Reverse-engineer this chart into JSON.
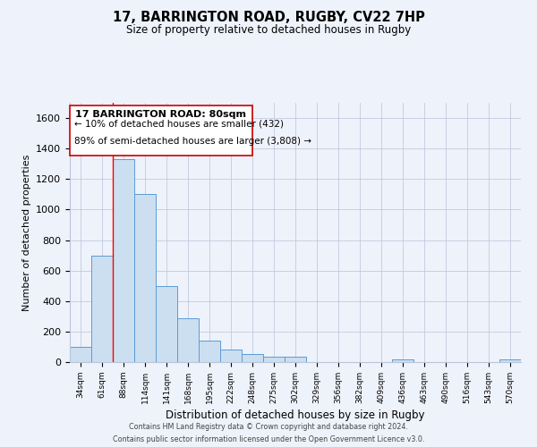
{
  "title1": "17, BARRINGTON ROAD, RUGBY, CV22 7HP",
  "title2": "Size of property relative to detached houses in Rugby",
  "xlabel": "Distribution of detached houses by size in Rugby",
  "ylabel": "Number of detached properties",
  "bar_labels": [
    "34sqm",
    "61sqm",
    "88sqm",
    "114sqm",
    "141sqm",
    "168sqm",
    "195sqm",
    "222sqm",
    "248sqm",
    "275sqm",
    "302sqm",
    "329sqm",
    "356sqm",
    "382sqm",
    "409sqm",
    "436sqm",
    "463sqm",
    "490sqm",
    "516sqm",
    "543sqm",
    "570sqm"
  ],
  "bar_values": [
    100,
    700,
    1330,
    1100,
    500,
    285,
    140,
    80,
    50,
    35,
    35,
    0,
    0,
    0,
    0,
    15,
    0,
    0,
    0,
    0,
    15
  ],
  "bar_color": "#ccdff0",
  "bar_edge_color": "#5b9bd5",
  "ylim": [
    0,
    1700
  ],
  "yticks": [
    0,
    200,
    400,
    600,
    800,
    1000,
    1200,
    1400,
    1600
  ],
  "red_line_x": 2,
  "annotation_title": "17 BARRINGTON ROAD: 80sqm",
  "annotation_line1": "← 10% of detached houses are smaller (432)",
  "annotation_line2": "89% of semi-detached houses are larger (3,808) →",
  "footnote1": "Contains HM Land Registry data © Crown copyright and database right 2024.",
  "footnote2": "Contains public sector information licensed under the Open Government Licence v3.0.",
  "bg_color": "#eef2fb"
}
